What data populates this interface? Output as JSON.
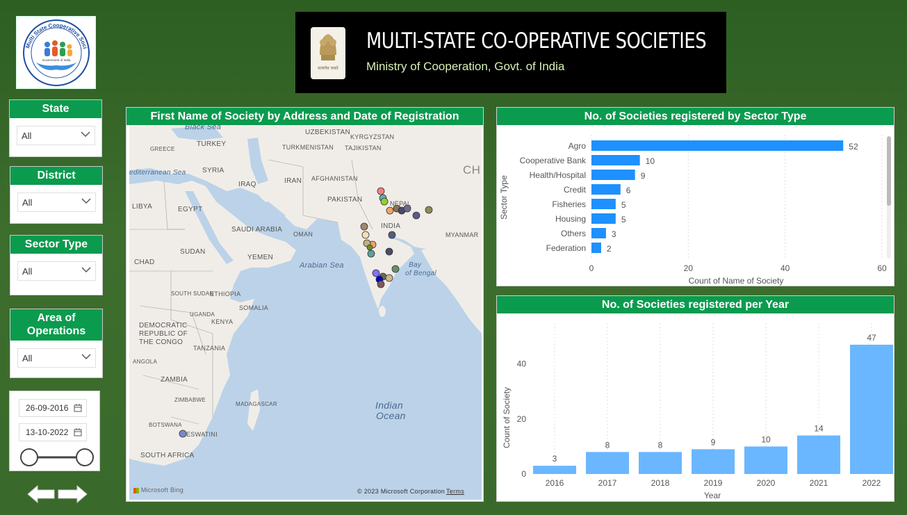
{
  "logo": {
    "text": "Multi State Cooperative Societies (MSCS)",
    "subtext": "Government of India"
  },
  "banner": {
    "title": "MULTI-STATE CO-OPERATIVE SOCIETIES",
    "subtitle": "Ministry of Cooperation, Govt. of India",
    "emblem_text": "सत्यमेव जयते"
  },
  "slicers": {
    "state": {
      "title": "State",
      "value": "All"
    },
    "district": {
      "title": "District",
      "value": "All"
    },
    "sector_type": {
      "title": "Sector Type",
      "value": "All"
    },
    "area_of_operations": {
      "title": "Area of Operations",
      "value": "All"
    }
  },
  "date_range": {
    "start": "26-09-2016",
    "end": "13-10-2022"
  },
  "map": {
    "title": "First Name of Society by Address and Date of Registration",
    "labels": {
      "black_sea": "Black Sea",
      "uzbekistan": "UZBEKISTAN",
      "greece": "GREECE",
      "turkey": "TURKEY",
      "turkmenistan": "TURKMENISTAN",
      "tajikistan": "TAJIKISTAN",
      "kyrgyzstan": "KYRGYZSTAN",
      "med_sea": "editerranean Sea",
      "syria": "SYRIA",
      "iraq": "IRAQ",
      "iran": "IRAN",
      "afghanistan": "AFGHANISTAN",
      "china": "CH",
      "libya": "LIBYA",
      "egypt": "EGYPT",
      "pakistan": "PAKISTAN",
      "nepal": "NEPAL",
      "saudi": "SAUDI ARABIA",
      "oman": "OMAN",
      "india": "INDIA",
      "myanmar": "MYANMAR",
      "sudan": "SUDAN",
      "chad": "CHAD",
      "yemen": "YEMEN",
      "arabian_sea": "Arabian Sea",
      "bay": "Bay",
      "of_bengal": "of Bengal",
      "south_sudan": "SOUTH SUDAN",
      "ethiopia": "ETHIOPIA",
      "somalia": "SOMALIA",
      "uganda": "UGANDA",
      "kenya": "KENYA",
      "drc_1": "DEMOCRATIC",
      "drc_2": "REPUBLIC OF",
      "drc_3": "THE CONGO",
      "tanzania": "TANZANIA",
      "angola": "ANGOLA",
      "zambia": "ZAMBIA",
      "zimbabwe": "ZIMBABWE",
      "madagascar": "MADAGASCAR",
      "botswana": "BOTSWANA",
      "eswatini": "ESWATINI",
      "south_africa": "SOUTH AFRICA",
      "indian_ocean_1": "Indian",
      "indian_ocean_2": "Ocean"
    },
    "attribution": "© 2023 Microsoft Corporation",
    "terms": "Terms",
    "bing": "Microsoft Bing"
  },
  "colors": {
    "accent_green": "#0b9b4e",
    "bar_dark": "#1e90ff",
    "bar_light": "#6ab7ff"
  },
  "sector_chart": {
    "title": "No. of Societies registered by Sector Type",
    "chart_data": {
      "type": "bar",
      "orientation": "horizontal",
      "categories": [
        "Agro",
        "Cooperative Bank",
        "Health/Hospital",
        "Credit",
        "Fisheries",
        "Housing",
        "Others",
        "Federation"
      ],
      "values": [
        52,
        10,
        9,
        6,
        5,
        5,
        3,
        2
      ],
      "xlabel": "Count of Name of Society",
      "ylabel": "Sector Type",
      "xlim": [
        0,
        60
      ],
      "xticks": [
        "0",
        "20",
        "40",
        "60"
      ]
    }
  },
  "year_chart": {
    "title": "No. of Societies registered per Year",
    "chart_data": {
      "type": "bar",
      "categories": [
        "2016",
        "2017",
        "2018",
        "2019",
        "2020",
        "2021",
        "2022"
      ],
      "values": [
        3,
        8,
        8,
        9,
        10,
        14,
        47
      ],
      "xlabel": "Year",
      "ylabel": "Count of Society",
      "ylim": [
        0,
        48
      ],
      "yticks": [
        "0",
        "20",
        "40"
      ]
    }
  }
}
